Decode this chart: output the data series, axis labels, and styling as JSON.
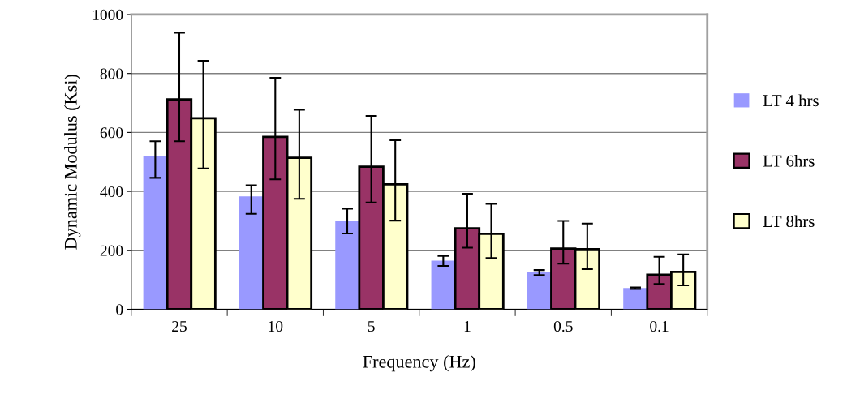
{
  "chart_data": {
    "type": "bar",
    "xlabel": "Frequency (Hz)",
    "ylabel": "Dynamic Modulus (Ksi)",
    "categories": [
      "25",
      "10",
      "5",
      "1",
      "0.5",
      "0.1"
    ],
    "series": [
      {
        "name": "LT 4 hrs",
        "color": "#9999ff",
        "values": [
          521,
          383,
          301,
          165,
          125,
          72
        ],
        "errors": [
          [
            446,
            570
          ],
          [
            324,
            421
          ],
          [
            257,
            341
          ],
          [
            147,
            181
          ],
          [
            116,
            133
          ],
          [
            69,
            74
          ]
        ]
      },
      {
        "name": "LT 6hrs",
        "color": "#993366",
        "values": [
          712,
          585,
          484,
          275,
          206,
          117
        ],
        "errors": [
          [
            570,
            938
          ],
          [
            441,
            785
          ],
          [
            362,
            656
          ],
          [
            209,
            392
          ],
          [
            155,
            300
          ],
          [
            86,
            178
          ]
        ]
      },
      {
        "name": "LT 8hrs",
        "color": "#ffffcc",
        "values": [
          648,
          514,
          424,
          256,
          204,
          127
        ],
        "errors": [
          [
            478,
            843
          ],
          [
            375,
            677
          ],
          [
            301,
            574
          ],
          [
            174,
            358
          ],
          [
            136,
            291
          ],
          [
            81,
            186
          ]
        ]
      }
    ],
    "ylim": [
      0,
      1000
    ],
    "yticks": [
      0,
      200,
      400,
      600,
      800,
      1000
    ],
    "grid": "y",
    "legend": "right"
  }
}
